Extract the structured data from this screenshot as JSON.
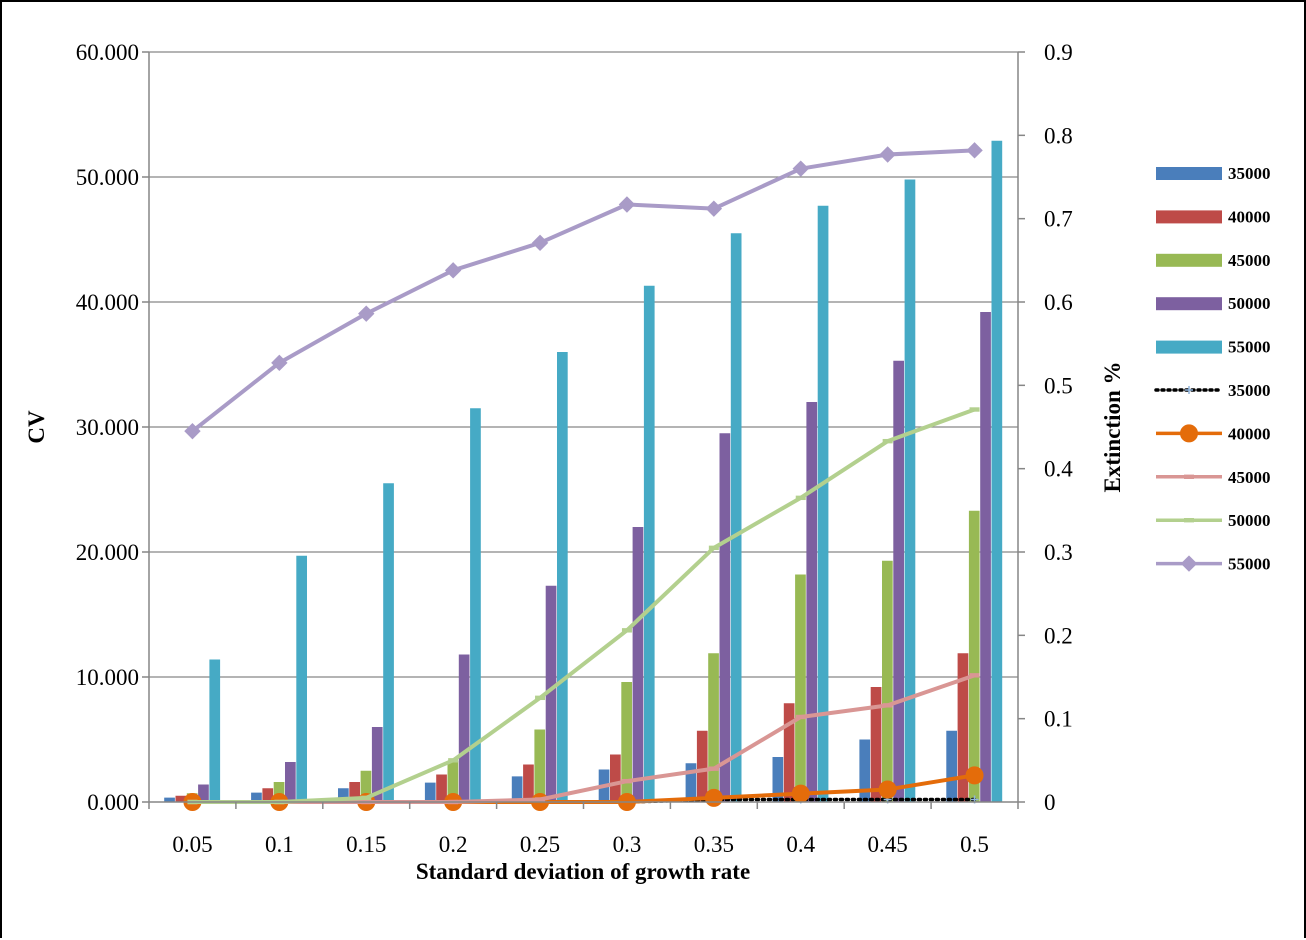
{
  "chart_data": {
    "type": "bar+line",
    "title": "",
    "xlabel": "Standard deviation of growth rate",
    "ylabel_left": "CV",
    "ylabel_right": "Extinction %",
    "categories": [
      "0.05",
      "0.1",
      "0.15",
      "0.2",
      "0.25",
      "0.3",
      "0.35",
      "0.4",
      "0.45",
      "0.5"
    ],
    "ylim_left": [
      0,
      60
    ],
    "yticks_left": [
      "0.000",
      "10.000",
      "20.000",
      "30.000",
      "40.000",
      "50.000",
      "60.000"
    ],
    "ylim_right": [
      0,
      0.9
    ],
    "yticks_right": [
      "0",
      "0.1",
      "0.2",
      "0.3",
      "0.4",
      "0.5",
      "0.6",
      "0.7",
      "0.8",
      "0.9"
    ],
    "grid": true,
    "legend_position": "right",
    "bar_series": [
      {
        "name": "35000",
        "color": "#4A7EBB",
        "values": [
          0.35,
          0.75,
          1.1,
          1.55,
          2.05,
          2.6,
          3.1,
          3.6,
          5.0,
          5.7
        ]
      },
      {
        "name": "40000",
        "color": "#BE4B48",
        "values": [
          0.5,
          1.1,
          1.6,
          2.2,
          3.0,
          3.8,
          5.7,
          7.9,
          9.2,
          11.9
        ]
      },
      {
        "name": "45000",
        "color": "#98B954",
        "values": [
          0.7,
          1.6,
          2.5,
          3.3,
          5.8,
          9.6,
          11.9,
          18.2,
          19.3,
          23.3
        ]
      },
      {
        "name": "50000",
        "color": "#7D60A0",
        "values": [
          1.4,
          3.2,
          6.0,
          11.8,
          17.3,
          22.0,
          29.5,
          32.0,
          35.3,
          39.2
        ]
      },
      {
        "name": "55000",
        "color": "#46AAC5",
        "values": [
          11.4,
          19.7,
          25.5,
          31.5,
          36.0,
          41.3,
          45.5,
          47.7,
          49.8,
          52.9
        ]
      }
    ],
    "line_series": [
      {
        "name": "35000",
        "color": "#000000",
        "style": "dotted",
        "marker": "plus",
        "values": [
          0,
          0,
          0,
          0,
          0,
          0,
          0.003,
          0.003,
          0.003,
          0.003
        ]
      },
      {
        "name": "40000",
        "color": "#E46C0A",
        "style": "solid",
        "marker": "circle",
        "values": [
          0,
          0,
          0,
          0,
          0,
          0,
          0.005,
          0.01,
          0.015,
          0.032
        ]
      },
      {
        "name": "45000",
        "color": "#D99694",
        "style": "solid",
        "marker": "dash",
        "values": [
          0,
          0,
          0,
          0,
          0.003,
          0.025,
          0.04,
          0.102,
          0.116,
          0.152
        ]
      },
      {
        "name": "50000",
        "color": "#B3D08E",
        "style": "solid",
        "marker": "dash",
        "values": [
          0,
          0,
          0.005,
          0.05,
          0.125,
          0.206,
          0.305,
          0.365,
          0.433,
          0.471
        ]
      },
      {
        "name": "55000",
        "color": "#A99BC7",
        "style": "solid",
        "marker": "diamond",
        "values": [
          0.445,
          0.527,
          0.586,
          0.638,
          0.671,
          0.717,
          0.712,
          0.76,
          0.777,
          0.782
        ]
      }
    ]
  }
}
